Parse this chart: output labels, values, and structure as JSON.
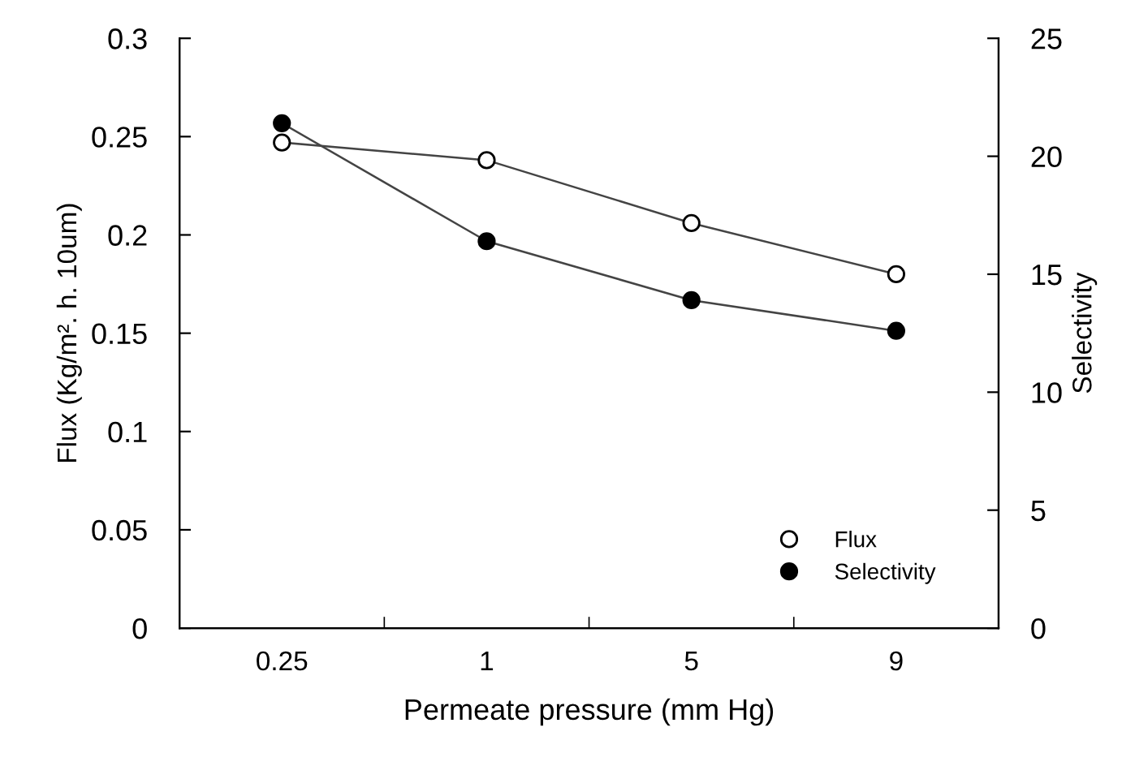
{
  "chart_data": {
    "type": "line",
    "xlabel": "Permeate pressure (mm Hg)",
    "ylabel": "Flux (Kg/m². h. 10um)",
    "y2label": "Selectivity",
    "categories": [
      "0.25",
      "1",
      "5",
      "9"
    ],
    "series": [
      {
        "name": "Flux",
        "color": "#ffffff",
        "values": [
          0.247,
          0.238,
          0.206,
          0.18
        ]
      },
      {
        "name": "Selectivity",
        "color": "#000000",
        "axis": "y2",
        "values": [
          21.4,
          16.4,
          13.9,
          12.6
        ]
      }
    ],
    "ylim": [
      0,
      0.3
    ],
    "yticks": [
      0,
      0.05,
      0.1,
      0.15,
      0.2,
      0.25,
      0.3
    ],
    "y2lim": [
      0,
      25
    ],
    "y2ticks": [
      0,
      5,
      10,
      15,
      20,
      25
    ],
    "marker": "circle",
    "line_style": "solid",
    "grid": false,
    "legend": "bottom right"
  }
}
